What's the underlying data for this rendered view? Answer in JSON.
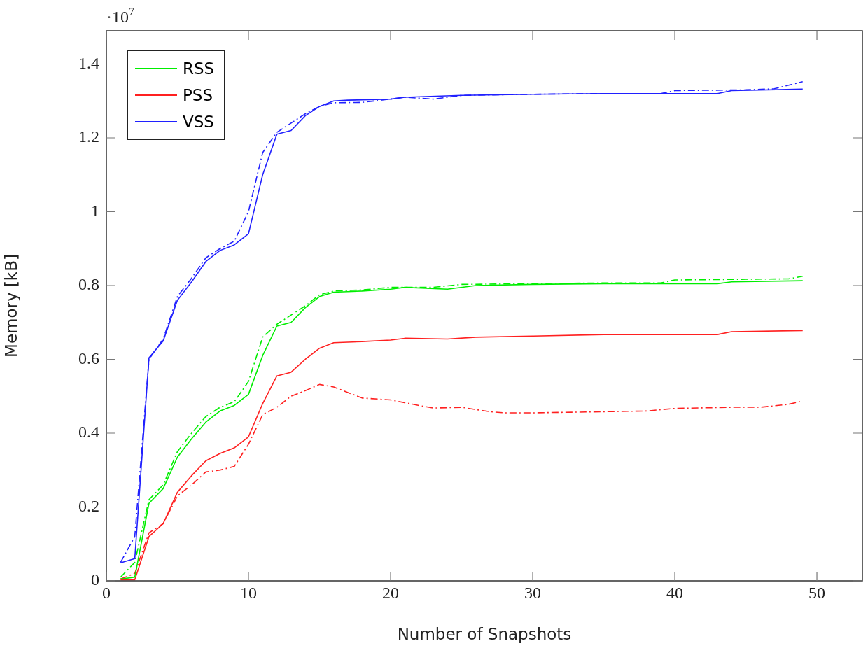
{
  "chart_data": {
    "type": "line",
    "xlabel": "Number of Snapshots",
    "ylabel": "Memory [kB]",
    "annotations": [
      "·10$^{7}$"
    ],
    "xlim": [
      0,
      53.2
    ],
    "xticks": [
      0,
      10,
      20,
      30,
      40,
      50
    ],
    "ylim": [
      0,
      1.49
    ],
    "yticks": [
      0,
      0.2,
      0.4,
      0.6,
      0.8,
      1,
      1.2,
      1.4
    ],
    "legend": "top left",
    "grid": false,
    "marker": "none",
    "series": [
      {
        "name": "RSS",
        "color": "#00ee00",
        "line_style": "solid",
        "x": [
          1,
          2,
          3,
          4,
          5,
          6,
          7,
          8,
          9,
          10,
          11,
          12,
          13,
          14,
          15,
          16,
          18,
          20,
          21,
          24,
          26,
          30,
          35,
          40,
          43,
          44,
          49
        ],
        "values": [
          0.005,
          0.01,
          0.21,
          0.25,
          0.335,
          0.385,
          0.43,
          0.46,
          0.475,
          0.505,
          0.61,
          0.69,
          0.7,
          0.74,
          0.77,
          0.782,
          0.785,
          0.79,
          0.795,
          0.79,
          0.8,
          0.803,
          0.805,
          0.805,
          0.805,
          0.81,
          0.813
        ]
      },
      {
        "name": "PSS",
        "color": "#ff2020",
        "line_style": "solid",
        "x": [
          1,
          2,
          3,
          4,
          5,
          6,
          7,
          8,
          9,
          10,
          11,
          12,
          13,
          14,
          15,
          16,
          18,
          20,
          21,
          24,
          26,
          30,
          35,
          40,
          43,
          44,
          49
        ],
        "values": [
          0.003,
          0.003,
          0.12,
          0.155,
          0.24,
          0.285,
          0.325,
          0.345,
          0.36,
          0.39,
          0.48,
          0.555,
          0.565,
          0.6,
          0.63,
          0.645,
          0.648,
          0.652,
          0.657,
          0.655,
          0.66,
          0.663,
          0.667,
          0.667,
          0.667,
          0.675,
          0.678
        ]
      },
      {
        "name": "VSS",
        "color": "#2020ff",
        "line_style": "solid",
        "x": [
          1,
          2,
          3,
          4,
          5,
          6,
          7,
          8,
          9,
          10,
          11,
          12,
          13,
          14,
          15,
          16,
          17,
          20,
          21,
          25,
          30,
          35,
          40,
          43,
          44,
          49
        ],
        "values": [
          0.049,
          0.06,
          0.604,
          0.65,
          0.76,
          0.81,
          0.865,
          0.895,
          0.91,
          0.94,
          1.1,
          1.21,
          1.22,
          1.26,
          1.285,
          1.3,
          1.302,
          1.305,
          1.31,
          1.315,
          1.318,
          1.32,
          1.32,
          1.32,
          1.328,
          1.332
        ]
      },
      {
        "color": "#00ee00",
        "line_style": "dashdot",
        "x": [
          1,
          2,
          3,
          4,
          5,
          6,
          7,
          8,
          9,
          10,
          11,
          12,
          13,
          14,
          15,
          16,
          18,
          20,
          23,
          25,
          30,
          35,
          39,
          40,
          45,
          48,
          49
        ],
        "values": [
          0.01,
          0.05,
          0.22,
          0.26,
          0.35,
          0.4,
          0.445,
          0.47,
          0.485,
          0.54,
          0.66,
          0.695,
          0.72,
          0.745,
          0.775,
          0.785,
          0.788,
          0.795,
          0.795,
          0.803,
          0.805,
          0.807,
          0.807,
          0.815,
          0.817,
          0.818,
          0.825
        ]
      },
      {
        "color": "#ff2020",
        "line_style": "dashdot",
        "x": [
          1,
          2,
          3,
          4,
          5,
          6,
          7,
          8,
          9,
          10,
          11,
          12,
          13,
          14,
          15,
          16,
          17,
          18,
          20,
          22,
          23,
          25,
          27,
          28,
          30,
          35,
          38,
          40,
          44,
          46,
          48,
          49
        ],
        "values": [
          0.005,
          0.02,
          0.13,
          0.155,
          0.23,
          0.26,
          0.295,
          0.3,
          0.31,
          0.37,
          0.45,
          0.47,
          0.5,
          0.515,
          0.532,
          0.525,
          0.51,
          0.495,
          0.49,
          0.475,
          0.468,
          0.47,
          0.458,
          0.455,
          0.455,
          0.458,
          0.46,
          0.467,
          0.47,
          0.47,
          0.478,
          0.487
        ]
      },
      {
        "color": "#2020ff",
        "line_style": "dashdot",
        "x": [
          1,
          2,
          3,
          4,
          5,
          6,
          7,
          8,
          9,
          10,
          11,
          12,
          13,
          14,
          15,
          16,
          18,
          20,
          21,
          23,
          25,
          30,
          35,
          39,
          40,
          45,
          47,
          49
        ],
        "values": [
          0.05,
          0.12,
          0.6,
          0.655,
          0.77,
          0.82,
          0.875,
          0.9,
          0.92,
          1.0,
          1.16,
          1.215,
          1.24,
          1.265,
          1.285,
          1.295,
          1.296,
          1.305,
          1.31,
          1.305,
          1.315,
          1.318,
          1.32,
          1.32,
          1.328,
          1.33,
          1.333,
          1.352
        ]
      }
    ]
  }
}
